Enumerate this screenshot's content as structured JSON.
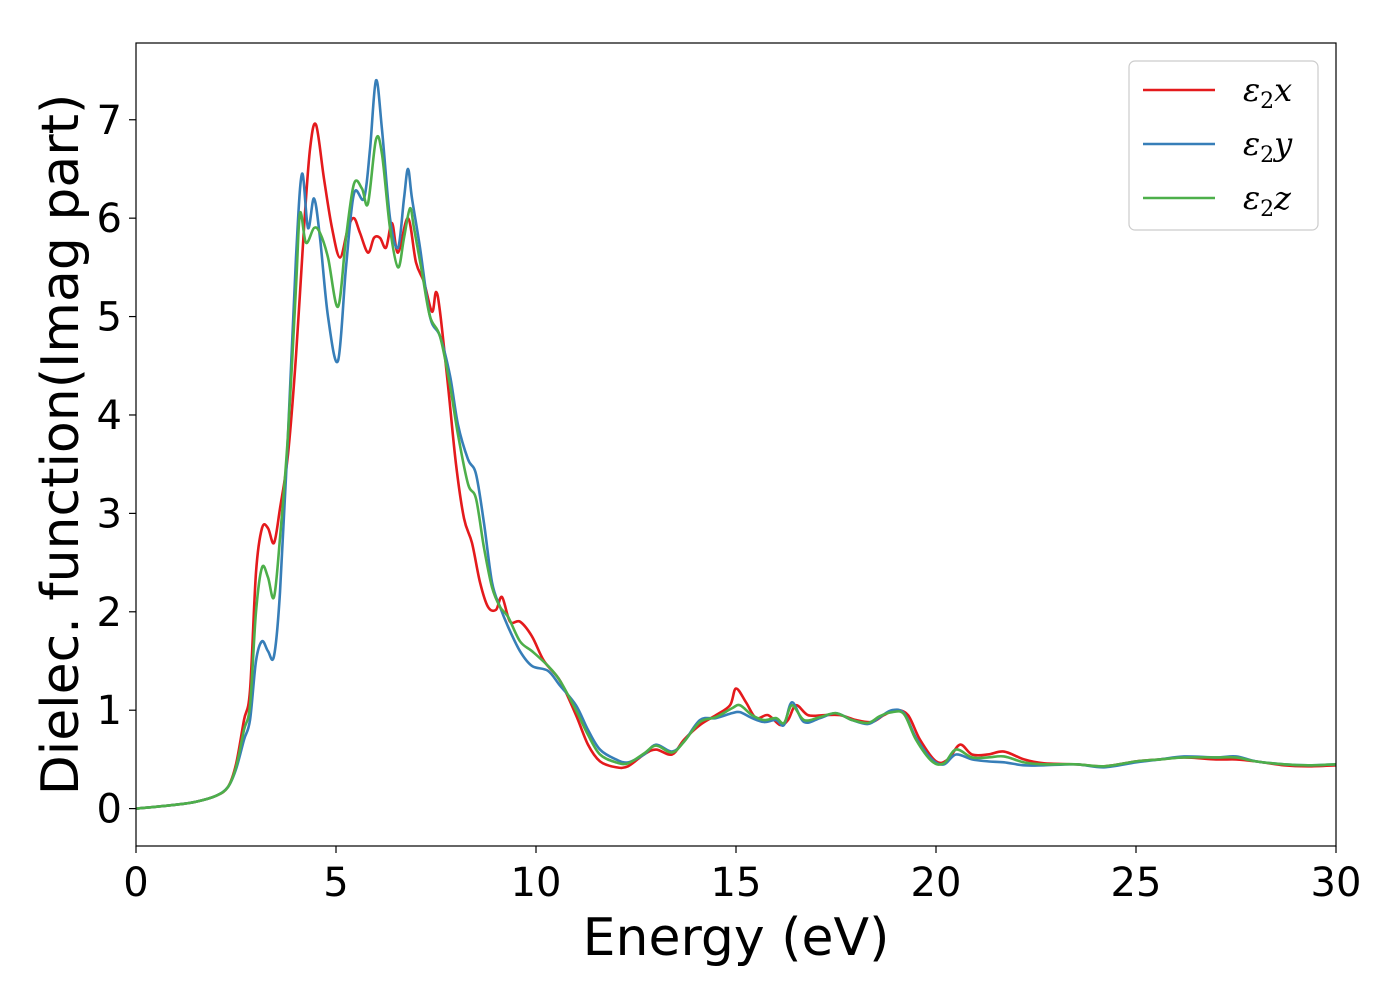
{
  "chart_data": {
    "type": "line",
    "title": "",
    "xlabel": "Energy (eV)",
    "ylabel": "Dielec. function(Imag part)",
    "xlim": [
      0,
      30
    ],
    "ylim": [
      -0.38,
      7.78
    ],
    "xticks": [
      0,
      5,
      10,
      15,
      20,
      25,
      30
    ],
    "xtick_labels": [
      "0",
      "5",
      "10",
      "15",
      "20",
      "25",
      "30"
    ],
    "yticks": [
      0,
      1,
      2,
      3,
      4,
      5,
      6,
      7
    ],
    "ytick_labels": [
      "0",
      "1",
      "2",
      "3",
      "4",
      "5",
      "6",
      "7"
    ],
    "grid": false,
    "legend_position": "top-right",
    "series": [
      {
        "name": "ε2x",
        "legend_base": "ε",
        "legend_sub": "2",
        "legend_tail": "x",
        "color": "#e41a1c",
        "points": [
          [
            0,
            0
          ],
          [
            1,
            0.04
          ],
          [
            1.5,
            0.07
          ],
          [
            2,
            0.13
          ],
          [
            2.3,
            0.22
          ],
          [
            2.5,
            0.45
          ],
          [
            2.7,
            0.9
          ],
          [
            2.85,
            1.2
          ],
          [
            3,
            2.4
          ],
          [
            3.15,
            2.85
          ],
          [
            3.3,
            2.85
          ],
          [
            3.45,
            2.7
          ],
          [
            3.6,
            3.05
          ],
          [
            3.8,
            3.6
          ],
          [
            4,
            4.6
          ],
          [
            4.2,
            5.9
          ],
          [
            4.35,
            6.7
          ],
          [
            4.5,
            6.95
          ],
          [
            4.7,
            6.4
          ],
          [
            4.9,
            5.9
          ],
          [
            5.1,
            5.6
          ],
          [
            5.3,
            5.9
          ],
          [
            5.45,
            6.0
          ],
          [
            5.6,
            5.85
          ],
          [
            5.8,
            5.65
          ],
          [
            5.95,
            5.8
          ],
          [
            6.1,
            5.8
          ],
          [
            6.25,
            5.7
          ],
          [
            6.4,
            5.95
          ],
          [
            6.55,
            5.65
          ],
          [
            6.8,
            6.0
          ],
          [
            7,
            5.55
          ],
          [
            7.2,
            5.35
          ],
          [
            7.4,
            5.05
          ],
          [
            7.5,
            5.25
          ],
          [
            7.6,
            5.05
          ],
          [
            7.8,
            4.3
          ],
          [
            8,
            3.5
          ],
          [
            8.2,
            2.95
          ],
          [
            8.4,
            2.7
          ],
          [
            8.6,
            2.3
          ],
          [
            8.8,
            2.05
          ],
          [
            9,
            2.02
          ],
          [
            9.15,
            2.15
          ],
          [
            9.35,
            1.9
          ],
          [
            9.6,
            1.9
          ],
          [
            9.9,
            1.75
          ],
          [
            10.2,
            1.5
          ],
          [
            10.6,
            1.3
          ],
          [
            11,
            0.95
          ],
          [
            11.3,
            0.65
          ],
          [
            11.6,
            0.48
          ],
          [
            12,
            0.42
          ],
          [
            12.3,
            0.43
          ],
          [
            12.7,
            0.55
          ],
          [
            13,
            0.6
          ],
          [
            13.4,
            0.55
          ],
          [
            13.7,
            0.7
          ],
          [
            14.1,
            0.85
          ],
          [
            14.5,
            0.95
          ],
          [
            14.85,
            1.05
          ],
          [
            15,
            1.22
          ],
          [
            15.25,
            1.08
          ],
          [
            15.5,
            0.92
          ],
          [
            15.8,
            0.95
          ],
          [
            16.1,
            0.85
          ],
          [
            16.3,
            0.9
          ],
          [
            16.5,
            1.05
          ],
          [
            16.8,
            0.95
          ],
          [
            17.2,
            0.95
          ],
          [
            17.6,
            0.95
          ],
          [
            18,
            0.9
          ],
          [
            18.4,
            0.88
          ],
          [
            18.7,
            0.95
          ],
          [
            19,
            1.0
          ],
          [
            19.3,
            0.95
          ],
          [
            19.6,
            0.7
          ],
          [
            20,
            0.48
          ],
          [
            20.3,
            0.5
          ],
          [
            20.6,
            0.65
          ],
          [
            20.9,
            0.55
          ],
          [
            21.3,
            0.55
          ],
          [
            21.7,
            0.58
          ],
          [
            22.2,
            0.5
          ],
          [
            22.7,
            0.46
          ],
          [
            23.5,
            0.45
          ],
          [
            24.2,
            0.43
          ],
          [
            25,
            0.48
          ],
          [
            25.6,
            0.5
          ],
          [
            26.2,
            0.52
          ],
          [
            27,
            0.5
          ],
          [
            27.5,
            0.5
          ],
          [
            28,
            0.48
          ],
          [
            28.7,
            0.44
          ],
          [
            29.3,
            0.43
          ],
          [
            30,
            0.44
          ]
        ]
      },
      {
        "name": "ε2y",
        "legend_base": "ε",
        "legend_sub": "2",
        "legend_tail": "y",
        "color": "#377eb8",
        "points": [
          [
            0,
            0
          ],
          [
            1,
            0.04
          ],
          [
            1.5,
            0.07
          ],
          [
            2,
            0.13
          ],
          [
            2.3,
            0.22
          ],
          [
            2.5,
            0.4
          ],
          [
            2.7,
            0.7
          ],
          [
            2.85,
            0.9
          ],
          [
            3,
            1.5
          ],
          [
            3.15,
            1.7
          ],
          [
            3.3,
            1.6
          ],
          [
            3.45,
            1.55
          ],
          [
            3.6,
            2.2
          ],
          [
            3.8,
            3.8
          ],
          [
            4,
            5.6
          ],
          [
            4.15,
            6.45
          ],
          [
            4.3,
            5.9
          ],
          [
            4.45,
            6.2
          ],
          [
            4.6,
            5.8
          ],
          [
            4.8,
            5.0
          ],
          [
            5.05,
            4.55
          ],
          [
            5.25,
            5.5
          ],
          [
            5.45,
            6.25
          ],
          [
            5.7,
            6.2
          ],
          [
            5.85,
            6.7
          ],
          [
            6,
            7.4
          ],
          [
            6.15,
            6.9
          ],
          [
            6.35,
            6.0
          ],
          [
            6.55,
            5.7
          ],
          [
            6.7,
            6.2
          ],
          [
            6.8,
            6.5
          ],
          [
            6.9,
            6.2
          ],
          [
            7.1,
            5.7
          ],
          [
            7.35,
            5.0
          ],
          [
            7.6,
            4.8
          ],
          [
            7.85,
            4.4
          ],
          [
            8.05,
            3.9
          ],
          [
            8.3,
            3.55
          ],
          [
            8.5,
            3.4
          ],
          [
            8.7,
            2.9
          ],
          [
            8.9,
            2.3
          ],
          [
            9.1,
            2.05
          ],
          [
            9.3,
            1.85
          ],
          [
            9.6,
            1.6
          ],
          [
            9.9,
            1.45
          ],
          [
            10.3,
            1.4
          ],
          [
            10.6,
            1.25
          ],
          [
            11,
            1.05
          ],
          [
            11.3,
            0.8
          ],
          [
            11.6,
            0.6
          ],
          [
            12,
            0.5
          ],
          [
            12.3,
            0.47
          ],
          [
            12.7,
            0.55
          ],
          [
            13,
            0.65
          ],
          [
            13.4,
            0.58
          ],
          [
            13.7,
            0.68
          ],
          [
            14.1,
            0.9
          ],
          [
            14.5,
            0.92
          ],
          [
            14.9,
            0.97
          ],
          [
            15.1,
            0.98
          ],
          [
            15.4,
            0.92
          ],
          [
            15.7,
            0.88
          ],
          [
            16,
            0.9
          ],
          [
            16.2,
            0.85
          ],
          [
            16.4,
            1.08
          ],
          [
            16.7,
            0.88
          ],
          [
            17.1,
            0.92
          ],
          [
            17.5,
            0.97
          ],
          [
            17.9,
            0.9
          ],
          [
            18.3,
            0.86
          ],
          [
            18.6,
            0.93
          ],
          [
            18.9,
            1.0
          ],
          [
            19.2,
            0.97
          ],
          [
            19.5,
            0.72
          ],
          [
            19.9,
            0.5
          ],
          [
            20.2,
            0.45
          ],
          [
            20.5,
            0.55
          ],
          [
            20.9,
            0.5
          ],
          [
            21.3,
            0.48
          ],
          [
            21.7,
            0.47
          ],
          [
            22.2,
            0.44
          ],
          [
            22.7,
            0.44
          ],
          [
            23.5,
            0.45
          ],
          [
            24.2,
            0.42
          ],
          [
            25,
            0.47
          ],
          [
            25.6,
            0.5
          ],
          [
            26.2,
            0.53
          ],
          [
            27,
            0.52
          ],
          [
            27.5,
            0.53
          ],
          [
            28,
            0.48
          ],
          [
            28.7,
            0.45
          ],
          [
            29.3,
            0.44
          ],
          [
            30,
            0.45
          ]
        ]
      },
      {
        "name": "ε2z",
        "legend_base": "ε",
        "legend_sub": "2",
        "legend_tail": "z",
        "color": "#4daf4a",
        "points": [
          [
            0,
            0
          ],
          [
            1,
            0.04
          ],
          [
            1.5,
            0.07
          ],
          [
            2,
            0.13
          ],
          [
            2.3,
            0.22
          ],
          [
            2.5,
            0.42
          ],
          [
            2.7,
            0.8
          ],
          [
            2.85,
            1.05
          ],
          [
            3,
            2.0
          ],
          [
            3.15,
            2.45
          ],
          [
            3.3,
            2.35
          ],
          [
            3.45,
            2.15
          ],
          [
            3.6,
            2.75
          ],
          [
            3.8,
            3.8
          ],
          [
            4,
            5.3
          ],
          [
            4.1,
            6.05
          ],
          [
            4.25,
            5.75
          ],
          [
            4.45,
            5.9
          ],
          [
            4.6,
            5.85
          ],
          [
            4.8,
            5.6
          ],
          [
            5.05,
            5.1
          ],
          [
            5.25,
            5.8
          ],
          [
            5.45,
            6.35
          ],
          [
            5.65,
            6.3
          ],
          [
            5.8,
            6.15
          ],
          [
            6,
            6.8
          ],
          [
            6.15,
            6.65
          ],
          [
            6.35,
            5.9
          ],
          [
            6.55,
            5.5
          ],
          [
            6.7,
            5.8
          ],
          [
            6.85,
            6.1
          ],
          [
            6.95,
            5.9
          ],
          [
            7.15,
            5.45
          ],
          [
            7.35,
            5.0
          ],
          [
            7.6,
            4.8
          ],
          [
            7.85,
            4.3
          ],
          [
            8.05,
            3.8
          ],
          [
            8.3,
            3.3
          ],
          [
            8.5,
            3.15
          ],
          [
            8.7,
            2.65
          ],
          [
            8.9,
            2.25
          ],
          [
            9.1,
            2.05
          ],
          [
            9.3,
            1.95
          ],
          [
            9.6,
            1.7
          ],
          [
            9.9,
            1.6
          ],
          [
            10.3,
            1.45
          ],
          [
            10.6,
            1.3
          ],
          [
            11,
            1.0
          ],
          [
            11.3,
            0.75
          ],
          [
            11.6,
            0.55
          ],
          [
            12,
            0.47
          ],
          [
            12.3,
            0.46
          ],
          [
            12.7,
            0.56
          ],
          [
            13,
            0.64
          ],
          [
            13.4,
            0.57
          ],
          [
            13.7,
            0.68
          ],
          [
            14.1,
            0.88
          ],
          [
            14.5,
            0.93
          ],
          [
            14.9,
            1.02
          ],
          [
            15.1,
            1.05
          ],
          [
            15.4,
            0.95
          ],
          [
            15.7,
            0.9
          ],
          [
            16,
            0.92
          ],
          [
            16.2,
            0.87
          ],
          [
            16.4,
            1.05
          ],
          [
            16.7,
            0.9
          ],
          [
            17.1,
            0.93
          ],
          [
            17.5,
            0.97
          ],
          [
            17.9,
            0.9
          ],
          [
            18.3,
            0.87
          ],
          [
            18.6,
            0.94
          ],
          [
            18.9,
            0.98
          ],
          [
            19.2,
            0.96
          ],
          [
            19.5,
            0.7
          ],
          [
            19.9,
            0.48
          ],
          [
            20.2,
            0.46
          ],
          [
            20.5,
            0.6
          ],
          [
            20.9,
            0.52
          ],
          [
            21.3,
            0.52
          ],
          [
            21.7,
            0.53
          ],
          [
            22.2,
            0.47
          ],
          [
            22.7,
            0.45
          ],
          [
            23.5,
            0.45
          ],
          [
            24.2,
            0.43
          ],
          [
            25,
            0.48
          ],
          [
            25.6,
            0.5
          ],
          [
            26.2,
            0.52
          ],
          [
            27,
            0.52
          ],
          [
            27.5,
            0.52
          ],
          [
            28,
            0.48
          ],
          [
            28.7,
            0.45
          ],
          [
            29.3,
            0.44
          ],
          [
            30,
            0.45
          ]
        ]
      }
    ]
  }
}
